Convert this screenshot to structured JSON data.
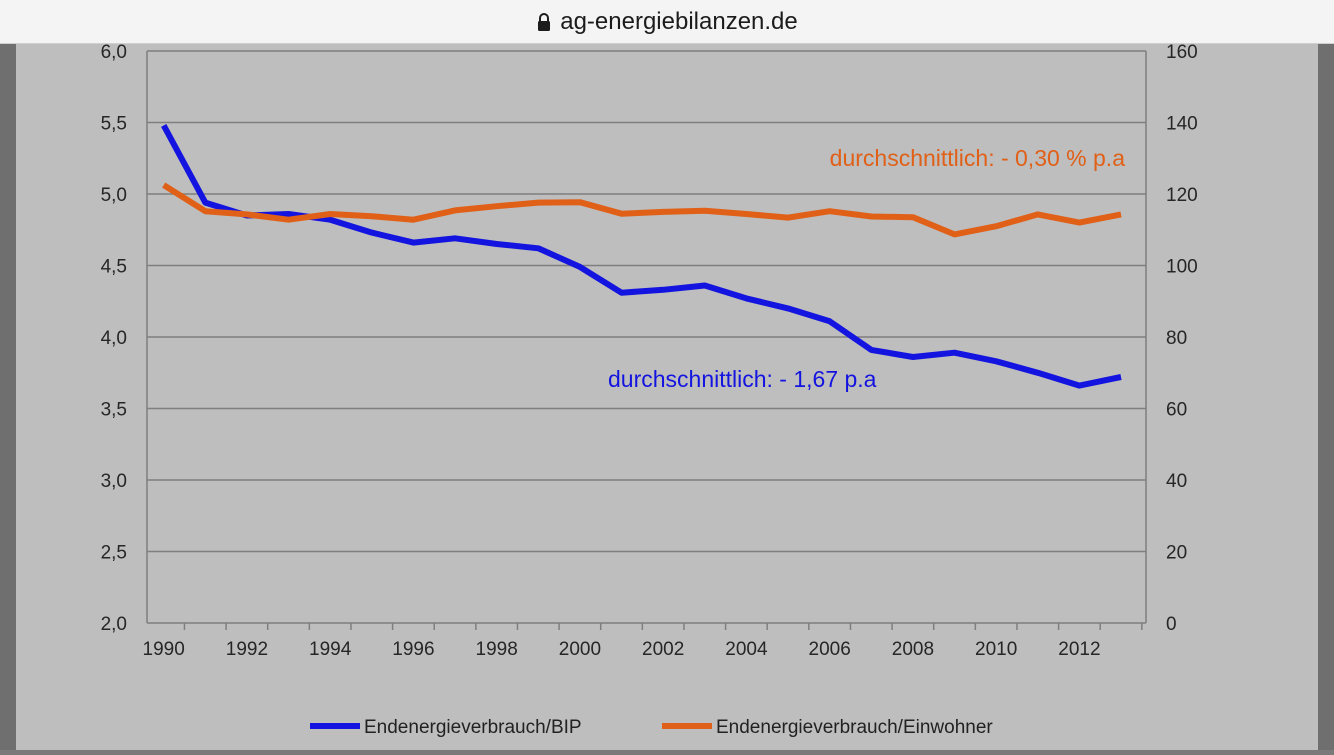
{
  "browser": {
    "url": "ag-energiebilanzen.de"
  },
  "colors": {
    "series1": "#1414e0",
    "series2": "#e06018",
    "grid": "#7f7f7f"
  },
  "chart_data": {
    "type": "line",
    "title": "",
    "x": [
      1990,
      1991,
      1992,
      1993,
      1994,
      1995,
      1996,
      1997,
      1998,
      1999,
      2000,
      2001,
      2002,
      2003,
      2004,
      2005,
      2006,
      2007,
      2008,
      2009,
      2010,
      2011,
      2012,
      2013
    ],
    "x_ticks": [
      "1990",
      "1992",
      "1994",
      "1996",
      "1998",
      "2000",
      "2002",
      "2004",
      "2006",
      "2008",
      "2010",
      "2012"
    ],
    "y_left": {
      "min": 2.0,
      "max": 6.0,
      "ticks": [
        "2,0",
        "2,5",
        "3,0",
        "3,5",
        "4,0",
        "4,5",
        "5,0",
        "5,5",
        "6,0"
      ]
    },
    "y_right": {
      "min": 0,
      "max": 160,
      "ticks": [
        "0",
        "20",
        "40",
        "60",
        "80",
        "100",
        "120",
        "140",
        "160"
      ]
    },
    "grid": true,
    "legend_position": "bottom",
    "series": [
      {
        "name": "Endenergieverbrauch/BIP",
        "axis": "left",
        "color": "#1414e0",
        "values": [
          5.48,
          4.94,
          4.85,
          4.86,
          4.82,
          4.73,
          4.66,
          4.69,
          4.65,
          4.62,
          4.49,
          4.31,
          4.33,
          4.36,
          4.27,
          4.2,
          4.11,
          3.91,
          3.86,
          3.89,
          3.83,
          3.75,
          3.66,
          3.72
        ]
      },
      {
        "name": "Endenergieverbrauch/Einwohner",
        "axis": "right",
        "color": "#e06018",
        "values": [
          122.5,
          115.2,
          114.3,
          112.8,
          114.4,
          113.8,
          112.8,
          115.4,
          116.6,
          117.6,
          117.7,
          114.5,
          115.0,
          115.3,
          114.4,
          113.4,
          115.2,
          113.7,
          113.5,
          108.7,
          111.0,
          114.3,
          112.0,
          114.3
        ]
      }
    ],
    "annotations": [
      {
        "text": "durchschnittlich: - 0,30 % p.a",
        "series": 1
      },
      {
        "text": "durchschnittlich: - 1,67 p.a",
        "series": 0
      }
    ]
  }
}
